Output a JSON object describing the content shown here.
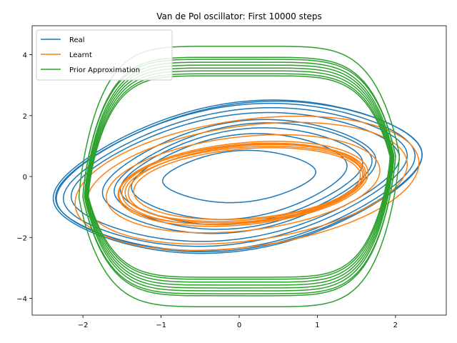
{
  "chart_data": {
    "type": "line",
    "title": "Van de Pol oscillator: First 10000 steps",
    "xlabel": "",
    "ylabel": "",
    "xlim": [
      -2.65,
      2.65
    ],
    "ylim": [
      -4.55,
      4.95
    ],
    "xticks": [
      -2,
      -1,
      0,
      1,
      2
    ],
    "yticks": [
      -4,
      -2,
      0,
      2,
      4
    ],
    "xtick_labels": [
      "−2",
      "−1",
      "0",
      "1",
      "2"
    ],
    "ytick_labels": [
      "−4",
      "−2",
      "0",
      "2",
      "4"
    ],
    "grid": false,
    "legend_position": "upper-left",
    "series": [
      {
        "name": "Real",
        "color": "#1f77b4",
        "loops": [
          {
            "xr": 0.98,
            "yr": 0.85,
            "shift": 0.0,
            "skew": 0.15
          },
          {
            "xr": 1.38,
            "yr": 1.38,
            "shift": 0.0,
            "skew": 0.25
          },
          {
            "xr": 1.55,
            "yr": 1.55,
            "shift": 0.03,
            "skew": 0.28
          },
          {
            "xr": 1.65,
            "yr": 1.7,
            "shift": 0.05,
            "skew": 0.3
          },
          {
            "xr": 1.75,
            "yr": 1.82,
            "shift": 0.0,
            "skew": 0.3
          },
          {
            "xr": 2.1,
            "yr": 2.05,
            "shift": -0.05,
            "skew": 0.3
          },
          {
            "xr": 2.2,
            "yr": 2.2,
            "shift": -0.05,
            "skew": 0.32
          },
          {
            "xr": 2.3,
            "yr": 2.35,
            "shift": -0.05,
            "skew": 0.3
          },
          {
            "xr": 2.36,
            "yr": 2.45,
            "shift": -0.02,
            "skew": 0.3
          },
          {
            "xr": 2.34,
            "yr": 2.4,
            "shift": 0.0,
            "skew": 0.31
          }
        ]
      },
      {
        "name": "Learnt",
        "color": "#ff7f0e",
        "loops": [
          {
            "xr": 1.45,
            "yr": 1.15,
            "shift": 0.1,
            "skew": 0.18
          },
          {
            "xr": 1.5,
            "yr": 1.25,
            "shift": 0.08,
            "skew": 0.2
          },
          {
            "xr": 1.55,
            "yr": 1.3,
            "shift": 0.05,
            "skew": 0.2
          },
          {
            "xr": 1.6,
            "yr": 1.35,
            "shift": 0.05,
            "skew": 0.22
          },
          {
            "xr": 1.52,
            "yr": 1.2,
            "shift": 0.06,
            "skew": 0.19
          },
          {
            "xr": 1.58,
            "yr": 1.28,
            "shift": 0.04,
            "skew": 0.21
          },
          {
            "xr": 1.75,
            "yr": 1.55,
            "shift": 0.05,
            "skew": 0.25
          },
          {
            "xr": 2.05,
            "yr": 1.9,
            "shift": 0.1,
            "skew": 0.3
          },
          {
            "xr": 2.2,
            "yr": 2.1,
            "shift": 0.1,
            "skew": 0.3
          }
        ]
      },
      {
        "name": "Prior Approximation",
        "color": "#2ca02c",
        "loops": [
          {
            "amp": 4.5,
            "xr": 2.05,
            "phase": 0.0
          },
          {
            "amp": 4.12,
            "xr": 2.0,
            "phase": 0.0
          },
          {
            "amp": 4.05,
            "xr": 2.0,
            "phase": 0.02
          },
          {
            "amp": 3.95,
            "xr": 1.98,
            "phase": 0.04
          },
          {
            "amp": 3.85,
            "xr": 1.97,
            "phase": 0.06
          },
          {
            "amp": 3.75,
            "xr": 1.96,
            "phase": 0.08
          },
          {
            "amp": 3.65,
            "xr": 1.95,
            "phase": 0.1
          },
          {
            "amp": 3.55,
            "xr": 1.94,
            "phase": 0.12
          },
          {
            "amp": 3.48,
            "xr": 1.93,
            "phase": 0.14
          }
        ]
      }
    ]
  }
}
